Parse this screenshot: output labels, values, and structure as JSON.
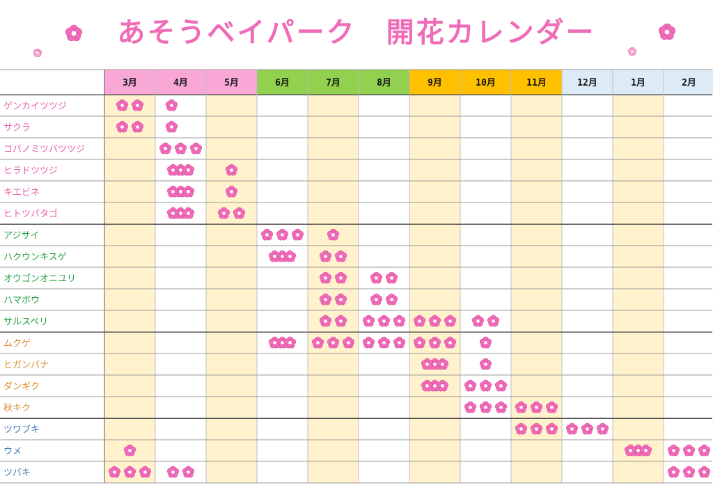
{
  "title": "あそうベイパーク　開花カレンダー",
  "colors": {
    "spring": "#f9a8d6",
    "summer": "#92d050",
    "autumn": "#ffc000",
    "winter": "#ddebf7",
    "stripe": "#fff2cc",
    "flower": "#f06bb8",
    "pink_text": "#e85ca8",
    "green_text": "#21a040",
    "orange_text": "#e08a2c",
    "blue_text": "#3d78b0"
  },
  "months": [
    {
      "label": "3月",
      "season": "spring"
    },
    {
      "label": "4月",
      "season": "spring"
    },
    {
      "label": "5月",
      "season": "spring"
    },
    {
      "label": "6月",
      "season": "summer"
    },
    {
      "label": "7月",
      "season": "summer"
    },
    {
      "label": "8月",
      "season": "summer"
    },
    {
      "label": "9月",
      "season": "autumn"
    },
    {
      "label": "10月",
      "season": "autumn"
    },
    {
      "label": "11月",
      "season": "autumn"
    },
    {
      "label": "12月",
      "season": "winter"
    },
    {
      "label": "1月",
      "season": "winter"
    },
    {
      "label": "2月",
      "season": "winter"
    }
  ],
  "plants": [
    {
      "name": "ゲンカイツツジ",
      "color": "pink",
      "bloom": [
        [
          0,
          2
        ],
        [
          1,
          0
        ]
      ]
    },
    {
      "name": "サクラ",
      "color": "pink",
      "bloom": [
        [
          0,
          2
        ],
        [
          1,
          0
        ]
      ]
    },
    {
      "name": "コバノミツバツツジ",
      "color": "pink",
      "bloom": [
        [
          1,
          3
        ]
      ]
    },
    {
      "name": "ヒラドツツジ",
      "color": "pink",
      "bloom": [
        [
          1,
          1
        ],
        [
          1,
          2
        ],
        [
          2,
          1
        ]
      ]
    },
    {
      "name": "キエビネ",
      "color": "pink",
      "bloom": [
        [
          1,
          1
        ],
        [
          1,
          2
        ],
        [
          2,
          1
        ]
      ]
    },
    {
      "name": "ヒトツバタゴ",
      "color": "pink",
      "bloom": [
        [
          1,
          1
        ],
        [
          1,
          2
        ],
        [
          2,
          2
        ]
      ]
    },
    {
      "name": "アジサイ",
      "color": "green",
      "bloom": [
        [
          3,
          3
        ],
        [
          4,
          1
        ]
      ]
    },
    {
      "name": "ハクウンキスゲ",
      "color": "green",
      "bloom": [
        [
          3,
          1
        ],
        [
          3,
          2
        ],
        [
          4,
          2
        ]
      ]
    },
    {
      "name": "オウゴンオニユリ",
      "color": "green",
      "bloom": [
        [
          4,
          2
        ],
        [
          5,
          2
        ]
      ]
    },
    {
      "name": "ハマボウ",
      "color": "green",
      "bloom": [
        [
          4,
          2
        ],
        [
          5,
          2
        ]
      ]
    },
    {
      "name": "サルスベリ",
      "color": "green",
      "bloom": [
        [
          4,
          2
        ],
        [
          5,
          3
        ],
        [
          6,
          3
        ],
        [
          7,
          2
        ]
      ]
    },
    {
      "name": "ムクゲ",
      "color": "orange",
      "bloom": [
        [
          3,
          1
        ],
        [
          3,
          2
        ],
        [
          4,
          3
        ],
        [
          5,
          3
        ],
        [
          6,
          3
        ],
        [
          7,
          1
        ]
      ]
    },
    {
      "name": "ヒガンバナ",
      "color": "orange",
      "bloom": [
        [
          6,
          1
        ],
        [
          6,
          2
        ],
        [
          7,
          1
        ]
      ]
    },
    {
      "name": "ダンギク",
      "color": "orange",
      "bloom": [
        [
          6,
          1
        ],
        [
          6,
          2
        ],
        [
          7,
          3
        ]
      ]
    },
    {
      "name": "秋キク",
      "color": "orange",
      "bloom": [
        [
          7,
          3
        ],
        [
          8,
          3
        ]
      ]
    },
    {
      "name": "ツワブキ",
      "color": "blue",
      "bloom": [
        [
          8,
          3
        ],
        [
          9,
          3
        ]
      ]
    },
    {
      "name": "ウメ",
      "color": "blue",
      "bloom": [
        [
          0,
          1
        ],
        [
          10,
          1
        ],
        [
          10,
          2
        ],
        [
          11,
          3
        ]
      ]
    },
    {
      "name": "ツバキ",
      "color": "blue",
      "bloom": [
        [
          0,
          3
        ],
        [
          1,
          2
        ],
        [
          11,
          3
        ]
      ]
    }
  ]
}
